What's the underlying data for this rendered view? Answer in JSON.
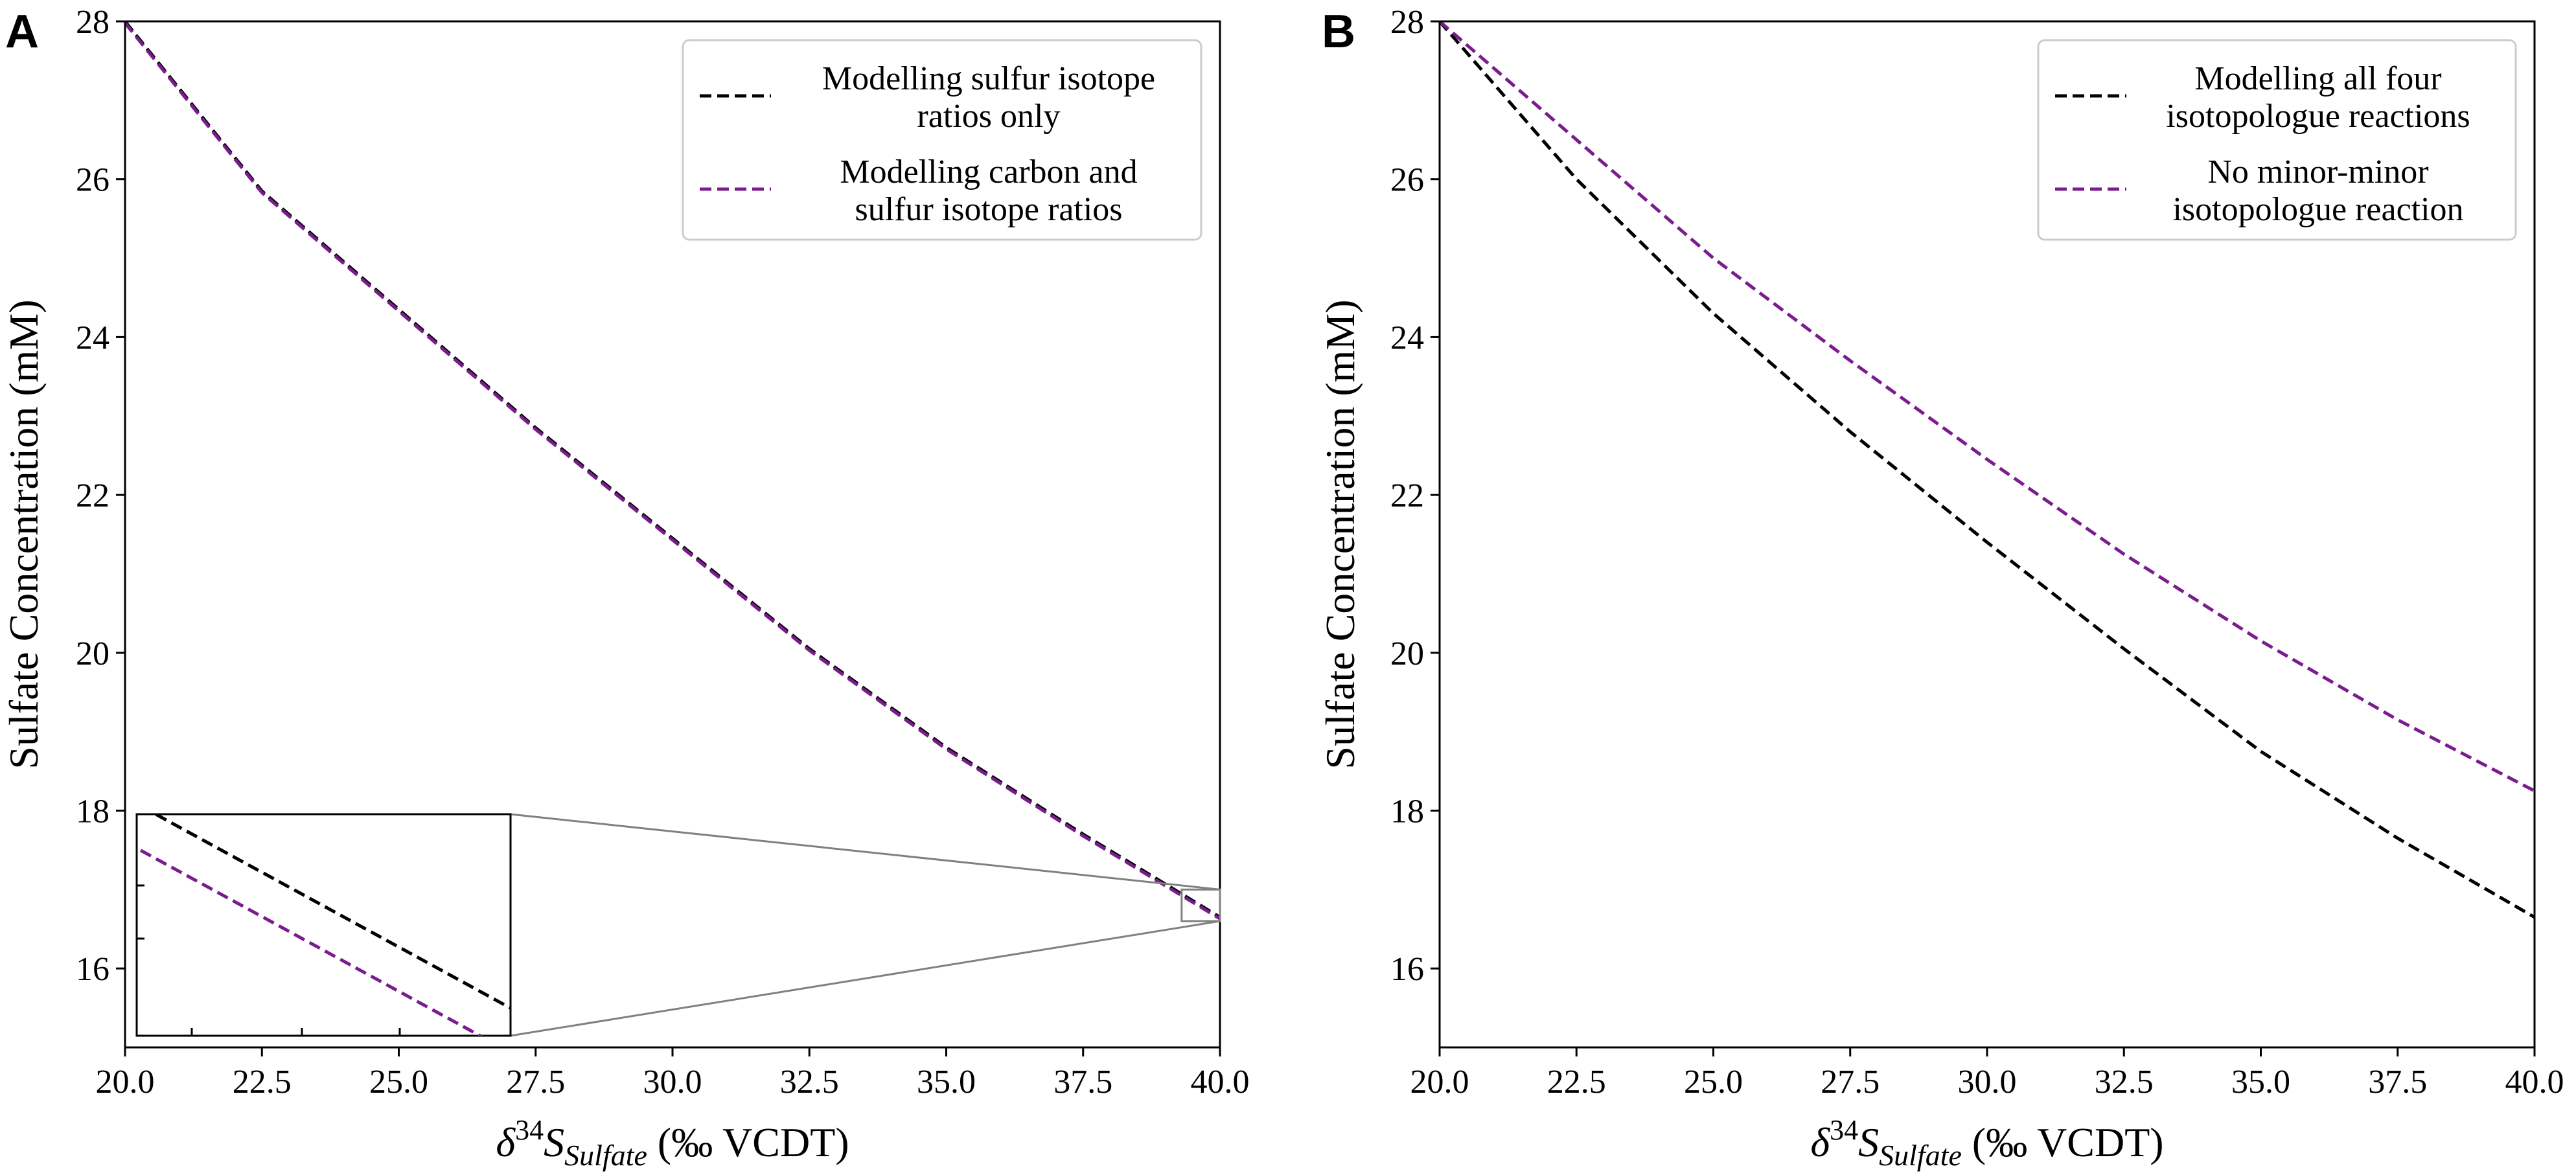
{
  "chart_data": [
    {
      "panel": "A",
      "type": "line",
      "xlabel_prefix": "δ",
      "xlabel_sup": "34",
      "xlabel_s": "S",
      "xlabel_sub": "Sulfate",
      "xlabel_suffix": " (‰ VCDT)",
      "ylabel": "Sulfate Concentration (mM)",
      "xlim": [
        20.0,
        40.0
      ],
      "ylim": [
        15.0,
        28.0
      ],
      "xticks": [
        "20.0",
        "22.5",
        "25.0",
        "27.5",
        "30.0",
        "32.5",
        "35.0",
        "37.5",
        "40.0"
      ],
      "yticks": [
        "16",
        "18",
        "20",
        "22",
        "24",
        "26",
        "28"
      ],
      "legend_position": "top-right",
      "series": [
        {
          "name": "Modelling sulfur isotope ratios only",
          "label_lines": [
            "Modelling sulfur isotope",
            "ratios only"
          ],
          "color": "#000000",
          "dash": "dashed",
          "x": [
            20.0,
            22.5,
            25.0,
            27.5,
            30.0,
            32.5,
            35.0,
            37.5,
            40.0
          ],
          "y": [
            28.0,
            25.85,
            24.35,
            22.85,
            21.45,
            20.05,
            18.8,
            17.7,
            16.65
          ]
        },
        {
          "name": "Modelling carbon and sulfur isotope ratios",
          "label_lines": [
            "Modelling carbon and",
            "sulfur isotope ratios"
          ],
          "color": "#7B1C8E",
          "dash": "dashed",
          "x": [
            20.0,
            22.5,
            25.0,
            27.5,
            30.0,
            32.5,
            35.0,
            37.5,
            40.0
          ],
          "y": [
            27.98,
            25.83,
            24.33,
            22.83,
            21.43,
            20.03,
            18.78,
            17.68,
            16.63
          ]
        }
      ],
      "inset": {
        "description": "zoomed view of the region near x=39.3–40.0, y=16.65–17.0",
        "xlim": [
          39.3,
          40.0
        ],
        "ylim": [
          16.6,
          17.0
        ]
      }
    },
    {
      "panel": "B",
      "type": "line",
      "xlabel_prefix": "δ",
      "xlabel_sup": "34",
      "xlabel_s": "S",
      "xlabel_sub": "Sulfate",
      "xlabel_suffix": " (‰ VCDT)",
      "ylabel": "Sulfate Concentration (mM)",
      "xlim": [
        20.0,
        40.0
      ],
      "ylim": [
        15.0,
        28.0
      ],
      "xticks": [
        "20.0",
        "22.5",
        "25.0",
        "27.5",
        "30.0",
        "32.5",
        "35.0",
        "37.5",
        "40.0"
      ],
      "yticks": [
        "16",
        "18",
        "20",
        "22",
        "24",
        "26",
        "28"
      ],
      "legend_position": "top-right",
      "series": [
        {
          "name": "Modelling all four isotopologue reactions",
          "label_lines": [
            "Modelling all four",
            "isotopologue reactions"
          ],
          "color": "#000000",
          "dash": "dashed",
          "x": [
            20.0,
            22.5,
            25.0,
            27.5,
            30.0,
            32.5,
            35.0,
            37.5,
            40.0
          ],
          "y": [
            28.0,
            26.0,
            24.3,
            22.8,
            21.4,
            20.05,
            18.75,
            17.65,
            16.65
          ]
        },
        {
          "name": "No minor-minor isotopologue reaction",
          "label_lines": [
            "No minor-minor",
            "isotopologue reaction"
          ],
          "color": "#7B1C8E",
          "dash": "dashed",
          "x": [
            20.0,
            22.5,
            25.0,
            27.5,
            30.0,
            32.5,
            35.0,
            37.5,
            40.0
          ],
          "y": [
            28.0,
            26.5,
            25.0,
            23.7,
            22.45,
            21.25,
            20.15,
            19.15,
            18.25
          ]
        }
      ]
    }
  ]
}
